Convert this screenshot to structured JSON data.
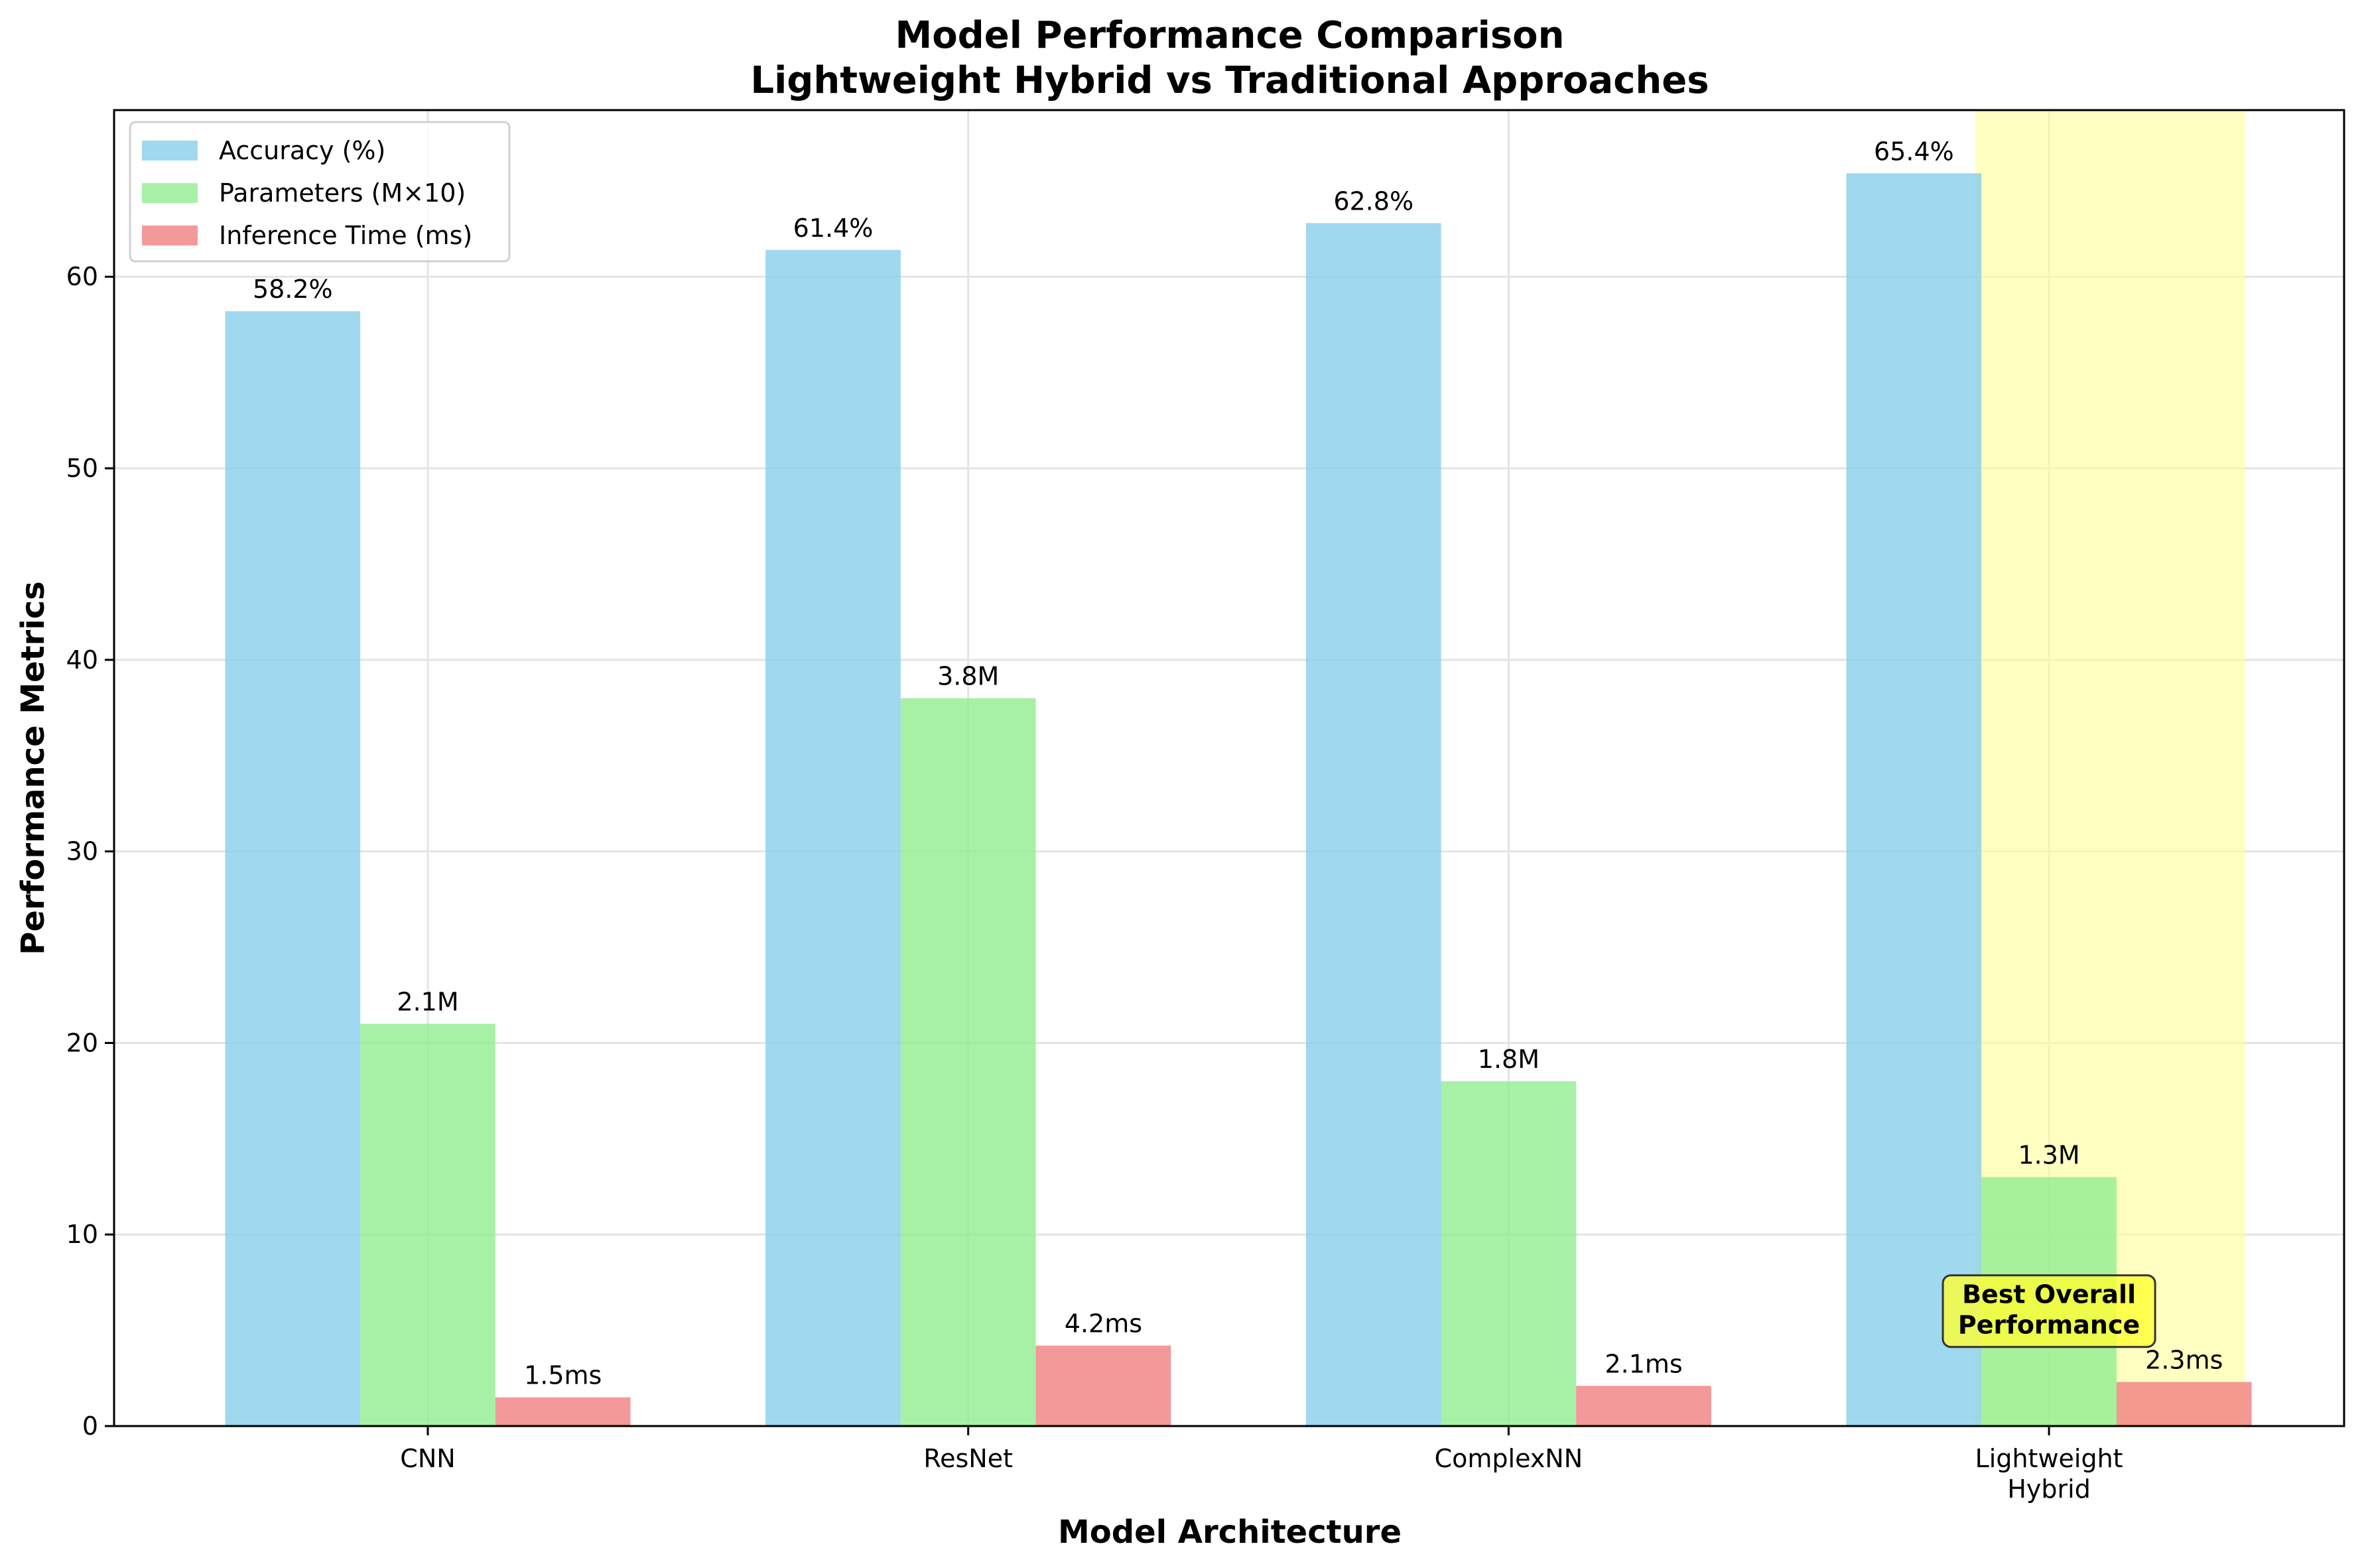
{
  "chart_data": {
    "type": "bar",
    "title": "Model Performance Comparison",
    "subtitle": "Lightweight Hybrid vs Traditional Approaches",
    "xlabel": "Model Architecture",
    "ylabel": "Performance Metrics",
    "categories": [
      "CNN",
      "ResNet",
      "ComplexNN",
      "Lightweight\nHybrid"
    ],
    "series": [
      {
        "name": "Accuracy (%)",
        "values": [
          58.2,
          61.4,
          62.8,
          65.4
        ],
        "labels": [
          "58.2%",
          "61.4%",
          "62.8%",
          "65.4%"
        ],
        "color": "#87ceeb"
      },
      {
        "name": "Parameters (M×10)",
        "values": [
          21,
          38,
          18,
          13
        ],
        "labels": [
          "2.1M",
          "3.8M",
          "1.8M",
          "1.3M"
        ],
        "color": "#90ee90"
      },
      {
        "name": "Inference Time (ms)",
        "values": [
          1.5,
          4.2,
          2.1,
          2.3
        ],
        "labels": [
          "1.5ms",
          "4.2ms",
          "2.1ms",
          "2.3ms"
        ],
        "color": "#f08080"
      }
    ],
    "ylim": [
      0,
      68.7
    ],
    "yticks": [
      0,
      10,
      20,
      30,
      40,
      50,
      60
    ],
    "grid": true,
    "legend_position": "top-left",
    "highlight": {
      "category_index": 3,
      "color": "#ffff99"
    },
    "annotation": {
      "text": "Best Overall\nPerformance",
      "category_index": 3,
      "y": 6,
      "color": "#ffff33"
    }
  }
}
